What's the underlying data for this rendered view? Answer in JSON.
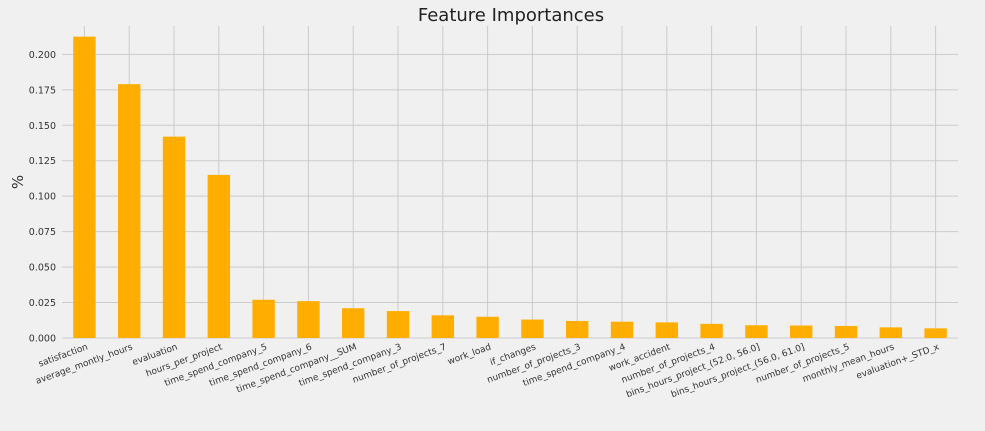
{
  "chart_data": {
    "type": "bar",
    "title": "Feature Importances",
    "xlabel": "",
    "ylabel": "%",
    "ylim": [
      0,
      0.22
    ],
    "yticks": [
      0.0,
      0.025,
      0.05,
      0.075,
      0.1,
      0.125,
      0.15,
      0.175,
      0.2
    ],
    "ytick_labels": [
      "0.000",
      "0.025",
      "0.050",
      "0.075",
      "0.100",
      "0.125",
      "0.150",
      "0.175",
      "0.200"
    ],
    "grid": true,
    "categories": [
      "satisfaction",
      "average_montly_hours",
      "evaluation",
      "hours_per_project",
      "time_spend_company_5",
      "time_spend_company_6",
      "time_spend_company__SUM",
      "time_spend_company_3",
      "number_of_projects_7",
      "work_load",
      "if_changes",
      "number_of_projects_3",
      "time_spend_company_4",
      "work_accident",
      "number_of_projects_4",
      "bins_hours_project_(52.0, 56.0]",
      "bins_hours_project_(56.0, 61.0]",
      "number_of_projects_5",
      "monthly_mean_hours",
      "evaluation+_STD_x"
    ],
    "values": [
      0.2125,
      0.179,
      0.142,
      0.115,
      0.027,
      0.026,
      0.021,
      0.019,
      0.016,
      0.015,
      0.013,
      0.012,
      0.0115,
      0.011,
      0.01,
      0.009,
      0.0088,
      0.0085,
      0.0075,
      0.0068
    ],
    "bar_color": "#FFAE00",
    "background_color": "#F0F0F0",
    "grid_color": "#CBCBCB"
  }
}
